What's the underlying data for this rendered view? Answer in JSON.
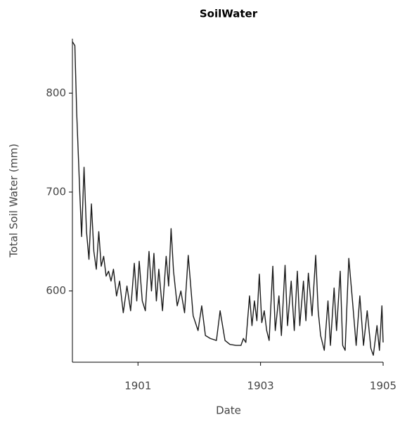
{
  "chart_data": {
    "type": "line",
    "title": "SoilWater",
    "x_label": "Date",
    "y_label": "Total Soil Water (mm)",
    "color": "#1a1a1a",
    "xlim": [
      1899.93,
      1905.0
    ],
    "ylim": [
      528,
      855
    ],
    "xticks": [
      1901,
      1903,
      1905
    ],
    "yticks": [
      600,
      700,
      800
    ],
    "x": [
      1899.93,
      1899.97,
      1900.0,
      1900.05,
      1900.08,
      1900.12,
      1900.16,
      1900.2,
      1900.24,
      1900.28,
      1900.32,
      1900.36,
      1900.4,
      1900.44,
      1900.48,
      1900.52,
      1900.56,
      1900.6,
      1900.65,
      1900.7,
      1900.76,
      1900.82,
      1900.88,
      1900.94,
      1900.98,
      1901.02,
      1901.07,
      1901.12,
      1901.18,
      1901.22,
      1901.26,
      1901.3,
      1901.34,
      1901.4,
      1901.46,
      1901.5,
      1901.54,
      1901.58,
      1901.64,
      1901.7,
      1901.76,
      1901.82,
      1901.9,
      1901.98,
      1902.04,
      1902.1,
      1902.18,
      1902.28,
      1902.34,
      1902.42,
      1902.5,
      1902.6,
      1902.68,
      1902.72,
      1902.76,
      1902.82,
      1902.86,
      1902.9,
      1902.94,
      1902.98,
      1903.02,
      1903.06,
      1903.1,
      1903.14,
      1903.2,
      1903.24,
      1903.3,
      1903.34,
      1903.4,
      1903.44,
      1903.5,
      1903.55,
      1903.6,
      1903.64,
      1903.7,
      1903.74,
      1903.78,
      1903.84,
      1903.9,
      1903.94,
      1903.98,
      1904.04,
      1904.1,
      1904.14,
      1904.2,
      1904.24,
      1904.3,
      1904.34,
      1904.38,
      1904.44,
      1904.5,
      1904.56,
      1904.62,
      1904.68,
      1904.74,
      1904.8,
      1904.84,
      1904.9,
      1904.94,
      1904.98,
      1905.0
    ],
    "values": [
      852,
      848,
      780,
      700,
      655,
      725,
      660,
      632,
      688,
      640,
      622,
      660,
      625,
      635,
      615,
      620,
      610,
      622,
      595,
      610,
      578,
      605,
      580,
      628,
      590,
      630,
      590,
      580,
      640,
      600,
      638,
      590,
      622,
      580,
      635,
      605,
      663,
      620,
      585,
      600,
      578,
      636,
      575,
      560,
      585,
      555,
      552,
      550,
      580,
      550,
      546,
      545,
      545,
      552,
      548,
      595,
      565,
      590,
      570,
      617,
      568,
      580,
      560,
      550,
      625,
      560,
      595,
      555,
      626,
      565,
      610,
      560,
      620,
      565,
      610,
      570,
      618,
      575,
      636,
      580,
      555,
      540,
      590,
      545,
      603,
      560,
      620,
      545,
      540,
      633,
      590,
      545,
      595,
      545,
      580,
      542,
      535,
      565,
      540,
      585,
      548
    ]
  }
}
